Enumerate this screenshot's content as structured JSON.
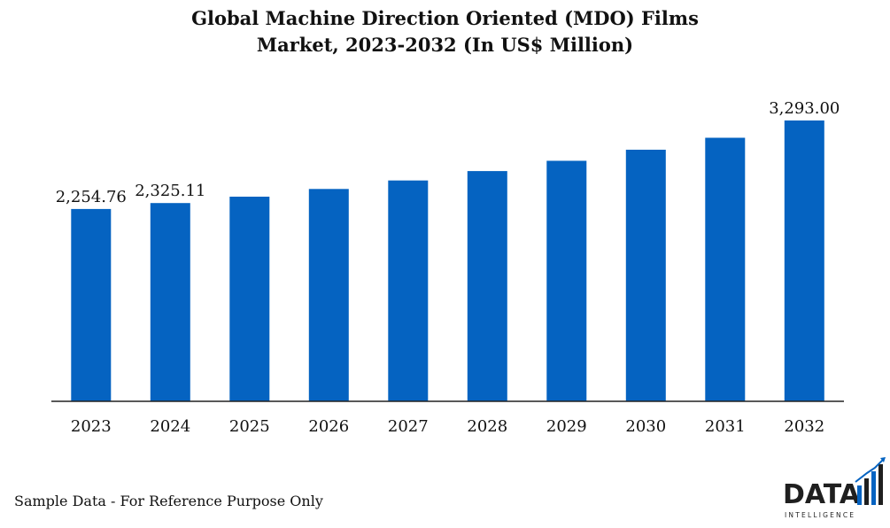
{
  "title": {
    "line1": "Global Machine Direction Oriented (MDO) Films",
    "line2": "Market, 2023-2032 (In US$ Million)"
  },
  "footnote": "Sample Data - For Reference Purpose Only",
  "logo": {
    "main": "DATA",
    "sub": "INTELLIGENCE"
  },
  "colors": {
    "bar": "#0563c1",
    "axis": "#222222",
    "logo_text": "#1f1f1f",
    "logo_accent": "#0563c1"
  },
  "chart_data": {
    "type": "bar",
    "title": "Global Machine Direction Oriented (MDO) Films Market, 2023-2032 (In US$ Million)",
    "categories": [
      "2023",
      "2024",
      "2025",
      "2026",
      "2027",
      "2028",
      "2029",
      "2030",
      "2031",
      "2032"
    ],
    "values": [
      2254.76,
      2325.11,
      2400,
      2490,
      2590,
      2700,
      2820,
      2950,
      3090,
      3293.0
    ],
    "data_labels": [
      "2,254.76",
      "2,325.11",
      "",
      "",
      "",
      "",
      "",
      "",
      "",
      "3,293.00"
    ],
    "xlabel": "",
    "ylabel": "",
    "ylim": [
      0,
      3293
    ],
    "grid": false,
    "legend": "none"
  }
}
